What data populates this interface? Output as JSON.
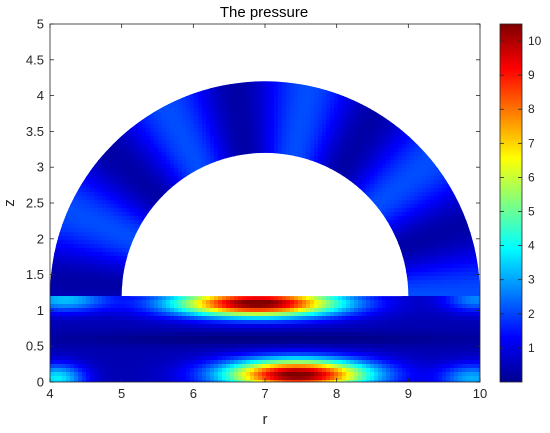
{
  "chart_data": {
    "type": "heatmap",
    "title": "The pressure",
    "xlabel": "r",
    "ylabel": "z",
    "xlim": [
      4,
      10
    ],
    "ylim": [
      0,
      5
    ],
    "x_ticks": [
      "4",
      "5",
      "6",
      "7",
      "8",
      "9",
      "10"
    ],
    "y_ticks": [
      "0",
      "0.5",
      "1",
      "1.5",
      "2",
      "2.5",
      "3",
      "3.5",
      "4",
      "4.5",
      "5"
    ],
    "colormap": "jet",
    "colorbar": {
      "range": [
        0,
        10.5
      ],
      "ticks": [
        "1",
        "2",
        "3",
        "4",
        "5",
        "6",
        "7",
        "8",
        "9",
        "10"
      ]
    },
    "domain": {
      "strip": {
        "r": [
          4,
          10
        ],
        "z": [
          0,
          1.2
        ]
      },
      "half_annulus": {
        "center_r": 7,
        "center_z": 1.2,
        "inner_radius": 2,
        "outer_radius": 3
      }
    },
    "grid": false
  }
}
